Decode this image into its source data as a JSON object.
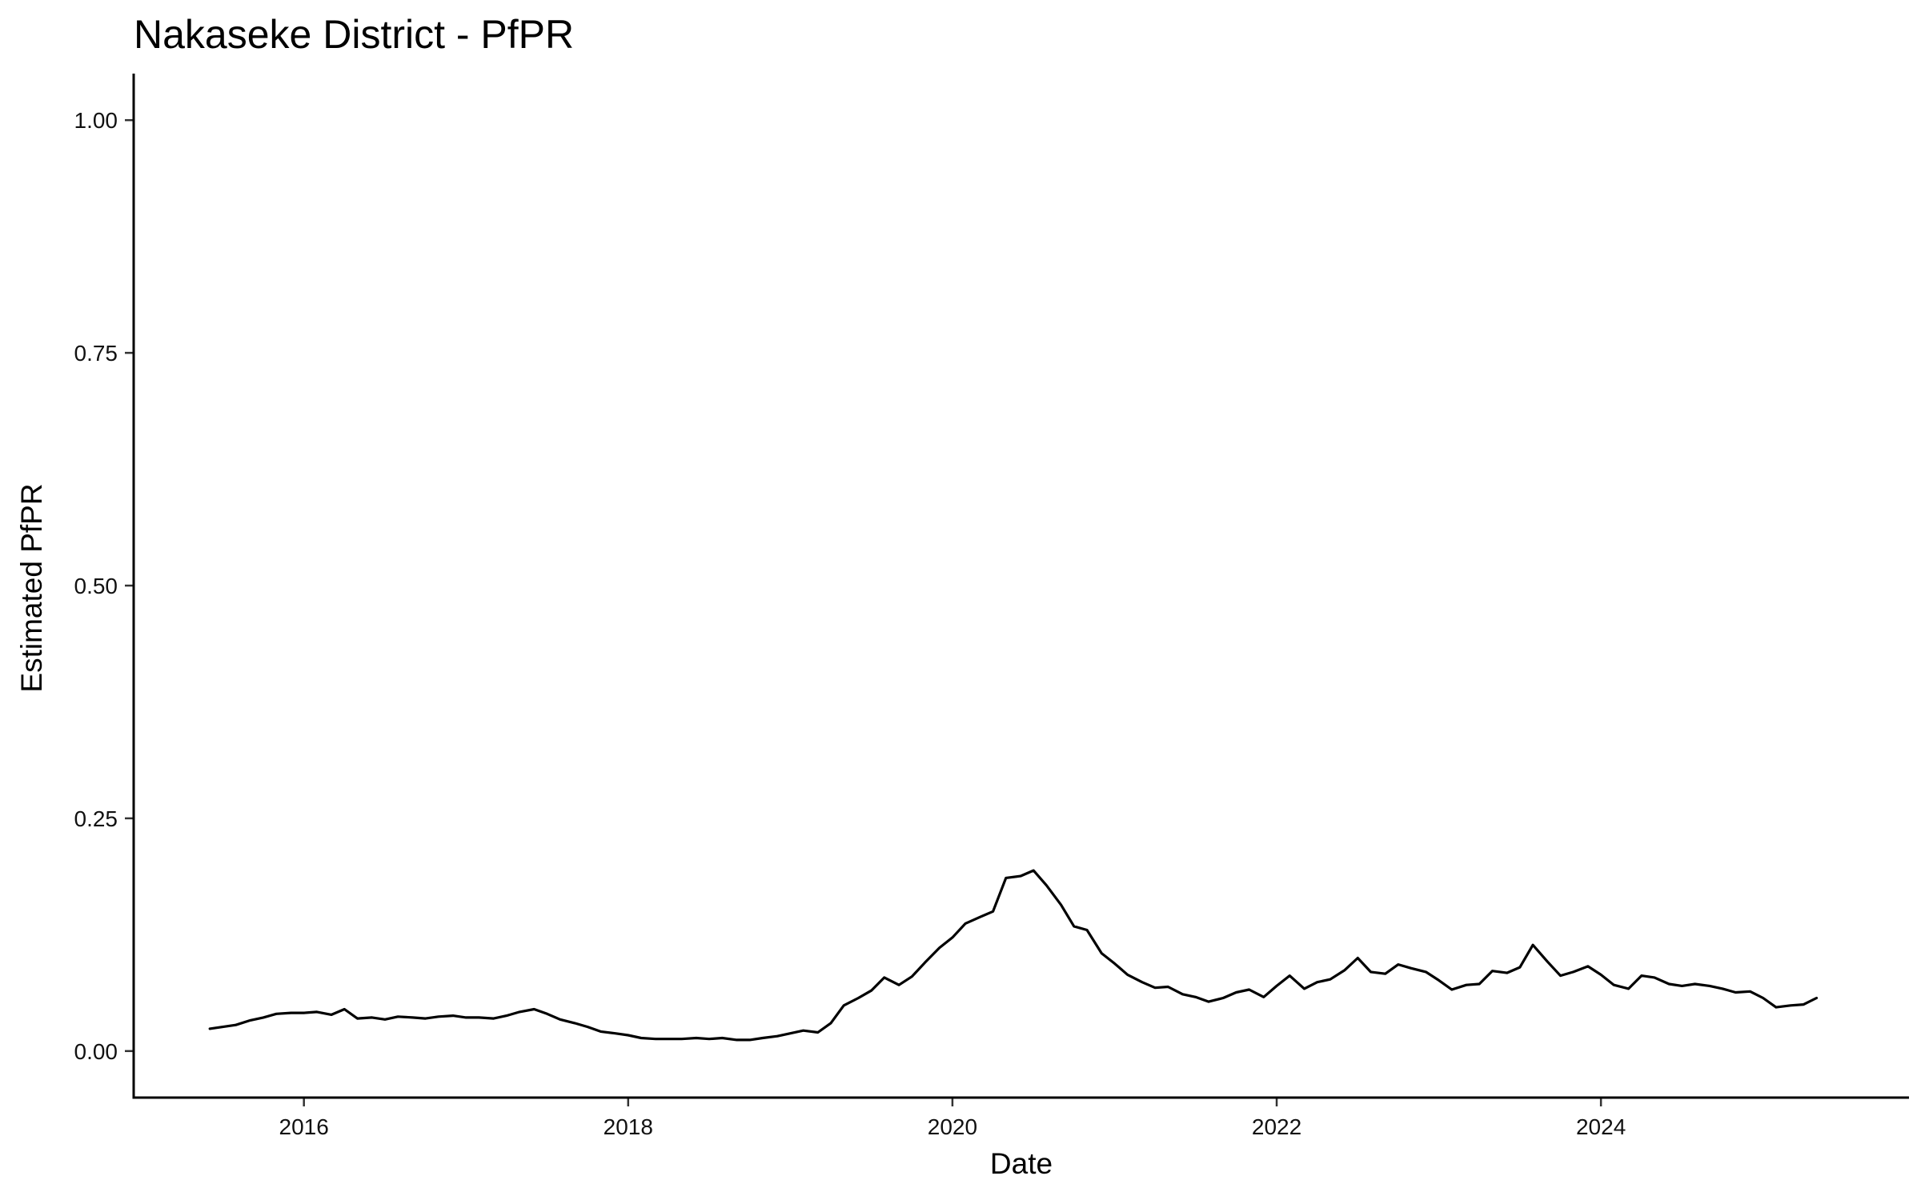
{
  "chart_data": {
    "type": "line",
    "title": "Nakaseke District - PfPR",
    "xlabel": "Date",
    "ylabel": "Estimated PfPR",
    "ylim": [
      -0.05,
      1.05
    ],
    "xlim": [
      2014.95,
      2025.9
    ],
    "y_ticks": [
      "0.00",
      "0.25",
      "0.50",
      "0.75",
      "1.00"
    ],
    "x_ticks": [
      "2016",
      "2018",
      "2020",
      "2022",
      "2024"
    ],
    "grid": false,
    "line_color": "#000000",
    "series": [
      {
        "x": [
          2015.42,
          2015.5,
          2015.58,
          2015.67,
          2015.75,
          2015.83,
          2015.92,
          2016.0,
          2016.08,
          2016.17,
          2016.25,
          2016.33,
          2016.42,
          2016.5,
          2016.58,
          2016.67,
          2016.75,
          2016.83,
          2016.92,
          2017.0,
          2017.08,
          2017.17,
          2017.25,
          2017.33,
          2017.42,
          2017.5,
          2017.58,
          2017.67,
          2017.75,
          2017.83,
          2017.92,
          2018.0,
          2018.08,
          2018.17,
          2018.25,
          2018.33,
          2018.42,
          2018.5,
          2018.58,
          2018.67,
          2018.75,
          2018.83,
          2018.92,
          2019.0,
          2019.08,
          2019.17,
          2019.25,
          2019.33,
          2019.42,
          2019.5,
          2019.58,
          2019.67,
          2019.75,
          2019.83,
          2019.92,
          2020.0,
          2020.08,
          2020.17,
          2020.25,
          2020.33,
          2020.42,
          2020.5,
          2020.58,
          2020.67,
          2020.75,
          2020.83,
          2020.92,
          2021.0,
          2021.08,
          2021.17,
          2021.25,
          2021.33,
          2021.42,
          2021.5,
          2021.58,
          2021.67,
          2021.75,
          2021.83,
          2021.92,
          2022.0,
          2022.08,
          2022.17,
          2022.25,
          2022.33,
          2022.42,
          2022.5,
          2022.58,
          2022.67,
          2022.75,
          2022.83,
          2022.92,
          2023.0,
          2023.08,
          2023.17,
          2023.25,
          2023.33,
          2023.42,
          2023.5,
          2023.58,
          2023.67,
          2023.75,
          2023.83,
          2023.92,
          2024.0,
          2024.08,
          2024.17,
          2024.25,
          2024.33,
          2024.42,
          2024.5,
          2024.58,
          2024.67,
          2024.75,
          2024.83,
          2024.92,
          2025.0,
          2025.08,
          2025.17,
          2025.25,
          2025.33
        ],
        "y": [
          0.024,
          0.026,
          0.028,
          0.033,
          0.036,
          0.04,
          0.041,
          0.041,
          0.042,
          0.039,
          0.045,
          0.035,
          0.036,
          0.034,
          0.037,
          0.036,
          0.035,
          0.037,
          0.038,
          0.036,
          0.036,
          0.035,
          0.038,
          0.042,
          0.045,
          0.04,
          0.034,
          0.03,
          0.026,
          0.021,
          0.019,
          0.017,
          0.014,
          0.013,
          0.013,
          0.013,
          0.014,
          0.013,
          0.014,
          0.012,
          0.012,
          0.014,
          0.016,
          0.019,
          0.022,
          0.02,
          0.03,
          0.049,
          0.057,
          0.065,
          0.079,
          0.071,
          0.08,
          0.095,
          0.111,
          0.122,
          0.137,
          0.144,
          0.15,
          0.186,
          0.188,
          0.194,
          0.178,
          0.157,
          0.134,
          0.13,
          0.105,
          0.094,
          0.082,
          0.074,
          0.068,
          0.069,
          0.061,
          0.058,
          0.053,
          0.057,
          0.063,
          0.066,
          0.058,
          0.07,
          0.081,
          0.067,
          0.074,
          0.077,
          0.087,
          0.1,
          0.085,
          0.083,
          0.093,
          0.089,
          0.085,
          0.076,
          0.066,
          0.071,
          0.072,
          0.086,
          0.084,
          0.09,
          0.114,
          0.096,
          0.081,
          0.085,
          0.091,
          0.082,
          0.071,
          0.067,
          0.081,
          0.079,
          0.072,
          0.07,
          0.072,
          0.07,
          0.067,
          0.063,
          0.064,
          0.057,
          0.047,
          0.049,
          0.05,
          0.057
        ]
      }
    ]
  }
}
